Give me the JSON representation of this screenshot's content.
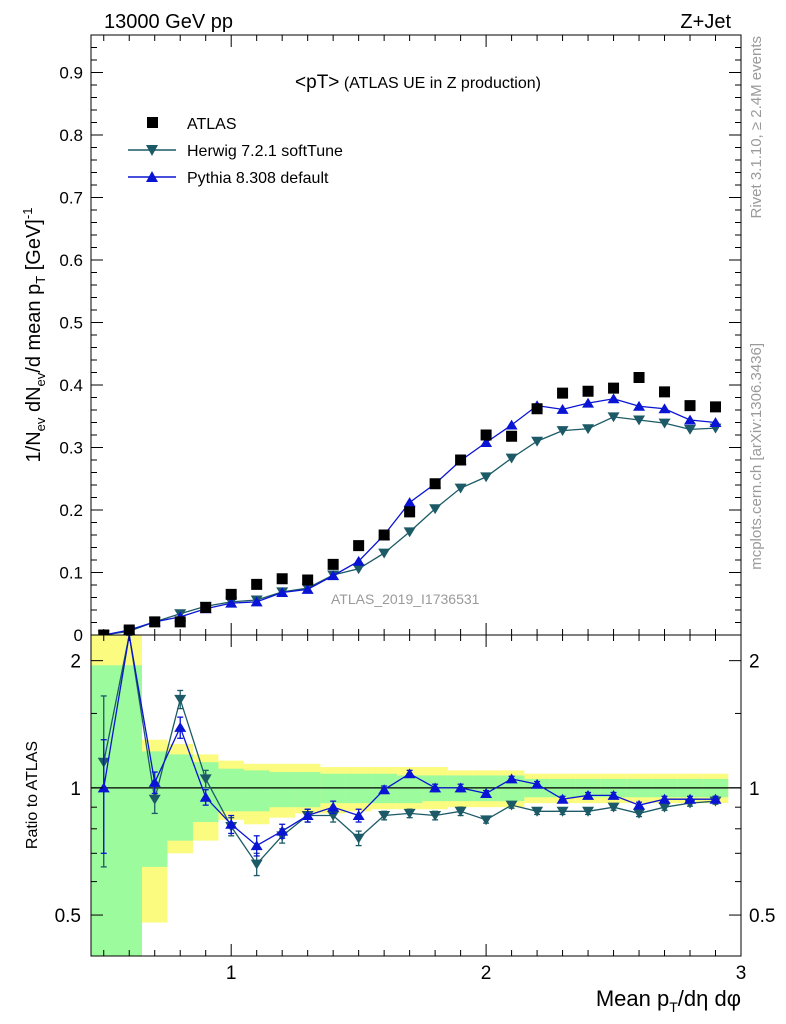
{
  "header": {
    "left": "13000 GeV pp",
    "right": "Z+Jet"
  },
  "side": {
    "rivet": "Rivet 3.1.10, ≥ 2.4M events",
    "mcplots": "mcplots.cern.ch [arXiv:1306.3436]"
  },
  "colors": {
    "data": "#000000",
    "herwig": "#1b5a66",
    "pythia": "#0a14d4",
    "band_inner": "#9cfb9c",
    "band_outer": "#fbfb80"
  },
  "chart_data": [
    {
      "panel": "main",
      "type": "scatter",
      "title": "<pT> (ATLAS UE in Z production)",
      "analysis_label": "ATLAS_2019_I1736531",
      "xlabel": "Mean p_T/dη dφ",
      "ylabel": "1/N_ev dN_ev/d mean p_T [GeV]^-1",
      "xlim": [
        0.45,
        3.0
      ],
      "ylim": [
        0,
        0.96
      ],
      "yticks": [
        0,
        0.1,
        0.2,
        0.3,
        0.4,
        0.5,
        0.6,
        0.7,
        0.8,
        0.9
      ],
      "ytick_labels": [
        "0",
        "0.1",
        "0.2",
        "0.3",
        "0.4",
        "0.5",
        "0.6",
        "0.7",
        "0.8",
        "0.9"
      ],
      "legend_position": "top-left",
      "x": [
        0.5,
        0.6,
        0.7,
        0.8,
        0.9,
        1.0,
        1.1,
        1.2,
        1.3,
        1.4,
        1.5,
        1.6,
        1.7,
        1.8,
        1.9,
        2.0,
        2.1,
        2.2,
        2.3,
        2.4,
        2.5,
        2.6,
        2.7,
        2.8,
        2.9
      ],
      "series": [
        {
          "name": "ATLAS",
          "marker": "square",
          "values": [
            0.0,
            0.008,
            0.021,
            0.021,
            0.044,
            0.065,
            0.081,
            0.09,
            0.088,
            0.113,
            0.143,
            0.16,
            0.197,
            0.242,
            0.28,
            0.32,
            0.318,
            0.362,
            0.387,
            0.39,
            0.395,
            0.412,
            0.389,
            0.367,
            0.365
          ]
        },
        {
          "name": "Herwig 7.2.1 softTune",
          "marker": "triangle-down",
          "values": [
            0.0,
            0.006,
            0.021,
            0.034,
            0.046,
            0.053,
            0.056,
            0.069,
            0.075,
            0.096,
            0.106,
            0.131,
            0.165,
            0.202,
            0.235,
            0.253,
            0.283,
            0.31,
            0.327,
            0.33,
            0.349,
            0.344,
            0.339,
            0.329,
            0.331
          ]
        },
        {
          "name": "Pythia 8.308 default",
          "marker": "triangle-up",
          "values": [
            0.0,
            0.008,
            0.021,
            0.029,
            0.042,
            0.051,
            0.053,
            0.068,
            0.073,
            0.095,
            0.118,
            0.16,
            0.212,
            0.242,
            0.279,
            0.308,
            0.336,
            0.367,
            0.361,
            0.371,
            0.378,
            0.366,
            0.362,
            0.344,
            0.34
          ]
        }
      ]
    },
    {
      "panel": "ratio",
      "type": "line",
      "ylabel": "Ratio to ATLAS",
      "xlim": [
        0.45,
        3.0
      ],
      "ylim": [
        0.4,
        2.3
      ],
      "scale_y": "log",
      "xticks": [
        1,
        2,
        3
      ],
      "xtick_labels": [
        "1",
        "2",
        "3"
      ],
      "yticks": [
        0.5,
        1,
        2
      ],
      "ytick_labels": [
        "0.5",
        "1",
        "2"
      ],
      "reference_line": 1,
      "bins": [
        {
          "lo": 0.45,
          "hi": 0.55,
          "inner": [
            0.4,
            1.95
          ],
          "outer": [
            0.4,
            2.5
          ]
        },
        {
          "lo": 0.55,
          "hi": 0.65,
          "inner": [
            0.4,
            1.95
          ],
          "outer": [
            0.4,
            2.5
          ]
        },
        {
          "lo": 0.65,
          "hi": 0.75,
          "inner": [
            0.65,
            1.22
          ],
          "outer": [
            0.48,
            1.3
          ]
        },
        {
          "lo": 0.75,
          "hi": 0.85,
          "inner": [
            0.75,
            1.2
          ],
          "outer": [
            0.7,
            1.27
          ]
        },
        {
          "lo": 0.85,
          "hi": 0.95,
          "inner": [
            0.83,
            1.15
          ],
          "outer": [
            0.75,
            1.2
          ]
        },
        {
          "lo": 0.95,
          "hi": 1.05,
          "inner": [
            0.88,
            1.11
          ],
          "outer": [
            0.84,
            1.16
          ]
        },
        {
          "lo": 1.05,
          "hi": 1.15,
          "inner": [
            0.88,
            1.1
          ],
          "outer": [
            0.82,
            1.14
          ]
        },
        {
          "lo": 1.15,
          "hi": 1.25,
          "inner": [
            0.9,
            1.09
          ],
          "outer": [
            0.85,
            1.14
          ]
        },
        {
          "lo": 1.25,
          "hi": 1.35,
          "inner": [
            0.9,
            1.09
          ],
          "outer": [
            0.87,
            1.14
          ]
        },
        {
          "lo": 1.35,
          "hi": 1.45,
          "inner": [
            0.92,
            1.08
          ],
          "outer": [
            0.87,
            1.12
          ]
        },
        {
          "lo": 1.45,
          "hi": 1.55,
          "inner": [
            0.92,
            1.08
          ],
          "outer": [
            0.88,
            1.12
          ]
        },
        {
          "lo": 1.55,
          "hi": 1.65,
          "inner": [
            0.92,
            1.08
          ],
          "outer": [
            0.89,
            1.12
          ]
        },
        {
          "lo": 1.65,
          "hi": 1.75,
          "inner": [
            0.92,
            1.07
          ],
          "outer": [
            0.89,
            1.12
          ]
        },
        {
          "lo": 1.75,
          "hi": 1.85,
          "inner": [
            0.93,
            1.07
          ],
          "outer": [
            0.89,
            1.12
          ]
        },
        {
          "lo": 1.85,
          "hi": 1.95,
          "inner": [
            0.93,
            1.07
          ],
          "outer": [
            0.9,
            1.1
          ]
        },
        {
          "lo": 1.95,
          "hi": 2.05,
          "inner": [
            0.93,
            1.07
          ],
          "outer": [
            0.9,
            1.1
          ]
        },
        {
          "lo": 2.05,
          "hi": 2.15,
          "inner": [
            0.93,
            1.07
          ],
          "outer": [
            0.9,
            1.1
          ]
        },
        {
          "lo": 2.15,
          "hi": 2.25,
          "inner": [
            0.95,
            1.05
          ],
          "outer": [
            0.92,
            1.08
          ]
        },
        {
          "lo": 2.25,
          "hi": 2.35,
          "inner": [
            0.95,
            1.05
          ],
          "outer": [
            0.92,
            1.08
          ]
        },
        {
          "lo": 2.35,
          "hi": 2.45,
          "inner": [
            0.95,
            1.05
          ],
          "outer": [
            0.92,
            1.08
          ]
        },
        {
          "lo": 2.45,
          "hi": 2.55,
          "inner": [
            0.95,
            1.05
          ],
          "outer": [
            0.92,
            1.08
          ]
        },
        {
          "lo": 2.55,
          "hi": 2.65,
          "inner": [
            0.95,
            1.05
          ],
          "outer": [
            0.92,
            1.08
          ]
        },
        {
          "lo": 2.65,
          "hi": 2.75,
          "inner": [
            0.95,
            1.05
          ],
          "outer": [
            0.92,
            1.08
          ]
        },
        {
          "lo": 2.75,
          "hi": 2.85,
          "inner": [
            0.95,
            1.05
          ],
          "outer": [
            0.92,
            1.08
          ]
        },
        {
          "lo": 2.85,
          "hi": 2.95,
          "inner": [
            0.95,
            1.05
          ],
          "outer": [
            0.92,
            1.08
          ]
        }
      ],
      "x": [
        0.5,
        0.6,
        0.7,
        0.8,
        0.9,
        1.0,
        1.1,
        1.2,
        1.3,
        1.4,
        1.5,
        1.6,
        1.7,
        1.8,
        1.9,
        2.0,
        2.1,
        2.2,
        2.3,
        2.4,
        2.5,
        2.6,
        2.7,
        2.8,
        2.9
      ],
      "series": [
        {
          "name": "Herwig 7.2.1 softTune",
          "values": [
            1.15,
            3.0,
            0.94,
            1.62,
            1.05,
            0.81,
            0.66,
            0.77,
            0.86,
            0.86,
            0.76,
            0.86,
            0.87,
            0.86,
            0.88,
            0.84,
            0.91,
            0.88,
            0.88,
            0.88,
            0.9,
            0.87,
            0.9,
            0.92,
            0.93
          ],
          "err": [
            0.5,
            0.3,
            0.07,
            0.08,
            0.05,
            0.04,
            0.04,
            0.03,
            0.03,
            0.03,
            0.03,
            0.02,
            0.02,
            0.02,
            0.02,
            0.015,
            0.015,
            0.015,
            0.015,
            0.015,
            0.015,
            0.015,
            0.015,
            0.015,
            0.015
          ]
        },
        {
          "name": "Pythia 8.308 default",
          "values": [
            1.0,
            3.0,
            1.03,
            1.39,
            0.95,
            0.82,
            0.73,
            0.79,
            0.86,
            0.9,
            0.86,
            0.99,
            1.08,
            1.0,
            1.0,
            0.97,
            1.05,
            1.02,
            0.94,
            0.96,
            0.96,
            0.91,
            0.94,
            0.94,
            0.94
          ],
          "err": [
            0.3,
            0.3,
            0.06,
            0.08,
            0.04,
            0.04,
            0.04,
            0.03,
            0.03,
            0.03,
            0.03,
            0.02,
            0.02,
            0.02,
            0.02,
            0.015,
            0.015,
            0.015,
            0.015,
            0.015,
            0.015,
            0.015,
            0.015,
            0.015,
            0.015
          ]
        }
      ]
    }
  ]
}
